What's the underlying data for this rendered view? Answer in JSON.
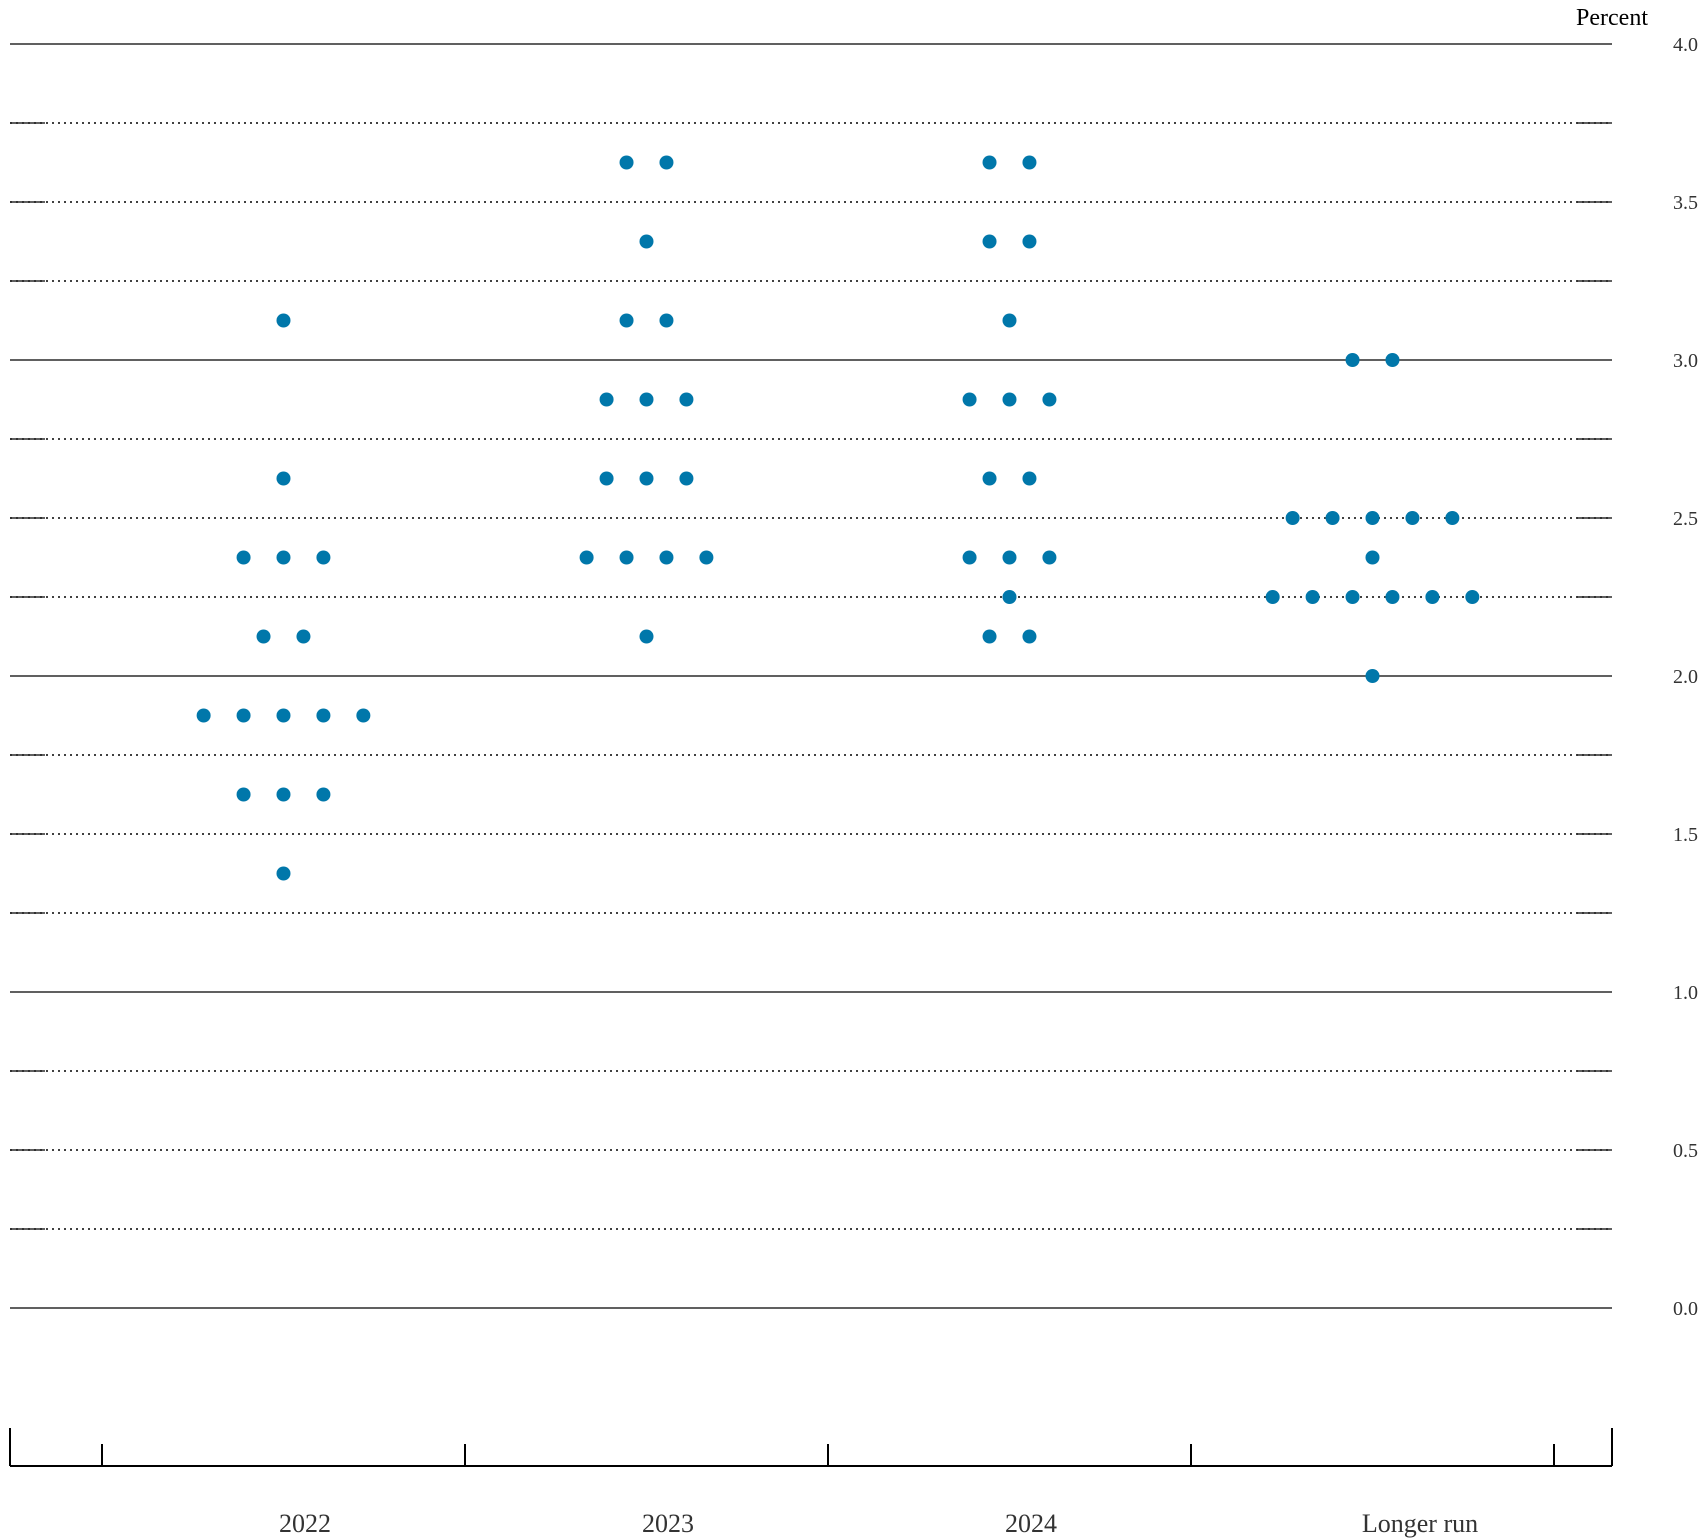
{
  "chart_data": {
    "type": "scatter",
    "ylabel": "Percent",
    "ylim": [
      0,
      4
    ],
    "ytick_step": 0.25,
    "ytick_labels": [
      "0.0",
      "0.5",
      "1.0",
      "1.5",
      "2.0",
      "2.5",
      "3.0",
      "3.5",
      "4.0"
    ],
    "categories": [
      "2022",
      "2023",
      "2024",
      "Longer run"
    ],
    "dot_color": "#0077AA",
    "dot_spacing": 0.11,
    "series": [
      {
        "category": "2022",
        "points": [
          {
            "y": 3.125,
            "count": 1
          },
          {
            "y": 2.625,
            "count": 1
          },
          {
            "y": 2.375,
            "count": 3
          },
          {
            "y": 2.125,
            "count": 2
          },
          {
            "y": 1.875,
            "count": 5
          },
          {
            "y": 1.625,
            "count": 3
          },
          {
            "y": 1.375,
            "count": 1
          }
        ]
      },
      {
        "category": "2023",
        "points": [
          {
            "y": 3.625,
            "count": 2
          },
          {
            "y": 3.375,
            "count": 1
          },
          {
            "y": 3.125,
            "count": 2
          },
          {
            "y": 2.875,
            "count": 3
          },
          {
            "y": 2.625,
            "count": 3
          },
          {
            "y": 2.375,
            "count": 4
          },
          {
            "y": 2.125,
            "count": 1
          }
        ]
      },
      {
        "category": "2024",
        "points": [
          {
            "y": 3.625,
            "count": 2
          },
          {
            "y": 3.375,
            "count": 2
          },
          {
            "y": 3.125,
            "count": 1
          },
          {
            "y": 2.875,
            "count": 3
          },
          {
            "y": 2.625,
            "count": 2
          },
          {
            "y": 2.375,
            "count": 3
          },
          {
            "y": 2.25,
            "count": 1
          },
          {
            "y": 2.125,
            "count": 2
          }
        ]
      },
      {
        "category": "Longer run",
        "points": [
          {
            "y": 3.0,
            "count": 2
          },
          {
            "y": 2.5,
            "count": 5
          },
          {
            "y": 2.375,
            "count": 1
          },
          {
            "y": 2.25,
            "count": 6
          },
          {
            "y": 2.0,
            "count": 1
          }
        ]
      }
    ]
  }
}
